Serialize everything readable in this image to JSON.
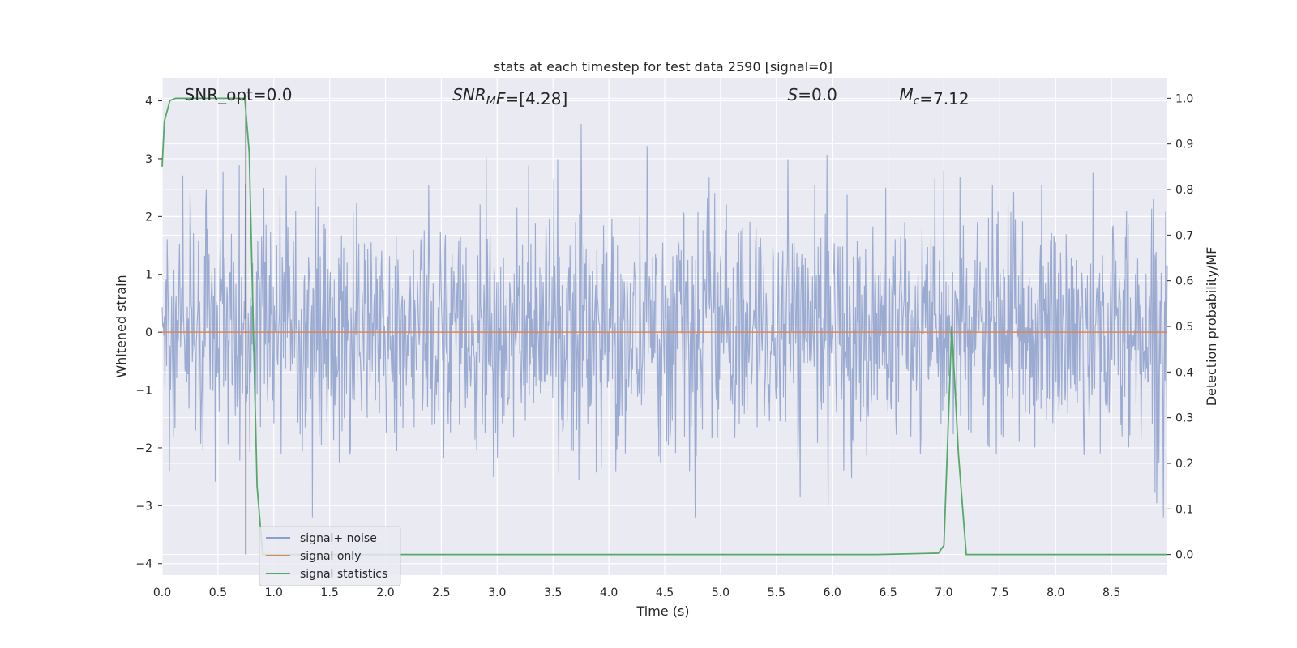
{
  "chart_data": {
    "type": "line",
    "title": "stats at each timestep for test data 2590 [signal=0]",
    "xlabel": "Time (s)",
    "ylabel": "Whitened strain",
    "y2label": "Detection probability/MF",
    "xlim": [
      0.0,
      9.0
    ],
    "ylim": [
      -4.2,
      4.4
    ],
    "y2lim": [
      -0.045,
      1.045
    ],
    "xticks": [
      "0.0",
      "0.5",
      "1.0",
      "1.5",
      "2.0",
      "2.5",
      "3.0",
      "3.5",
      "4.0",
      "4.5",
      "5.0",
      "5.5",
      "6.0",
      "6.5",
      "7.0",
      "7.5",
      "8.0",
      "8.5"
    ],
    "yticks": [
      "4",
      "3",
      "2",
      "1",
      "0",
      "−1",
      "−2",
      "−3",
      "−4"
    ],
    "y2ticks": [
      "1.0",
      "0.9",
      "0.8",
      "0.7",
      "0.6",
      "0.5",
      "0.4",
      "0.3",
      "0.2",
      "0.1",
      "0.0"
    ],
    "grid": true,
    "legend_position": "lower-left",
    "annotations": [
      {
        "name": "snr-opt",
        "parts": [
          {
            "t": "SNR_opt=0.0",
            "style": "normal"
          }
        ],
        "x": 0.2
      },
      {
        "name": "snr-mf",
        "parts": [
          {
            "t": "SNR",
            "style": "italic"
          },
          {
            "t": "M",
            "style": "italic-sub"
          },
          {
            "t": "F",
            "style": "italic"
          },
          {
            "t": "=[4.28]",
            "style": "normal"
          }
        ],
        "x": 2.6
      },
      {
        "name": "s-value",
        "parts": [
          {
            "t": "S",
            "style": "italic"
          },
          {
            "t": "=0.0",
            "style": "normal"
          }
        ],
        "x": 5.6
      },
      {
        "name": "mc-value",
        "parts": [
          {
            "t": "M",
            "style": "italic"
          },
          {
            "t": "c",
            "style": "italic-sub"
          },
          {
            "t": "=7.12",
            "style": "normal"
          }
        ],
        "x": 6.6
      }
    ],
    "marker_line": {
      "x": 0.75,
      "y2_from": 0.0,
      "y2_to": 1.0
    },
    "series": [
      {
        "name": "signal+ noise",
        "color": "#8c9fcb",
        "kind": "noise",
        "n_samples": 1800,
        "sigma": 1.0,
        "envelope_y": [
          -3.2,
          3.6
        ]
      },
      {
        "name": "signal only",
        "color": "#dd8452",
        "axis": "left",
        "x": [
          0.0,
          9.0
        ],
        "y": [
          0.0,
          0.0
        ]
      },
      {
        "name": "signal statistics",
        "color": "#55a868",
        "axis": "right",
        "x": [
          0.0,
          0.02,
          0.07,
          0.12,
          0.3,
          0.5,
          0.74,
          0.78,
          0.85,
          0.9,
          2.0,
          4.0,
          5.8,
          6.4,
          6.95,
          7.0,
          7.07,
          7.13,
          7.2,
          8.0,
          9.0
        ],
        "y": [
          0.85,
          0.95,
          0.995,
          1.0,
          1.0,
          1.0,
          1.0,
          0.88,
          0.15,
          0.0,
          0.0,
          0.0,
          0.0,
          0.0,
          0.003,
          0.02,
          0.5,
          0.22,
          0.0,
          0.0,
          0.0
        ]
      }
    ]
  }
}
